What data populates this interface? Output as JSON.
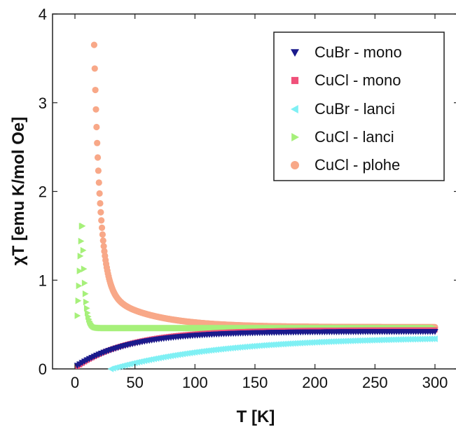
{
  "chart_data": {
    "type": "scatter",
    "xlabel": "T [K]",
    "ylabel": "χT [emu K/mol Oe]",
    "xlim": [
      -30,
      325
    ],
    "ylim": [
      0,
      4
    ],
    "xticks": [
      "0",
      "50",
      "100",
      "150",
      "200",
      "250",
      "300"
    ],
    "yticks": [
      "0",
      "1",
      "2",
      "3",
      "4"
    ],
    "legend_position": "top-right",
    "series": [
      {
        "name": "CuBr - mono",
        "color": "#1a1a8c",
        "marker": "triangle-down"
      },
      {
        "name": "CuCl - mono",
        "color": "#f0507a",
        "marker": "square"
      },
      {
        "name": "CuBr - lanci",
        "color": "#7ff0f4",
        "marker": "triangle-left"
      },
      {
        "name": "CuCl - lanci",
        "color": "#a6f07a",
        "marker": "triangle-right"
      },
      {
        "name": "CuCl - plohe",
        "color": "#f8a888",
        "marker": "circle"
      }
    ]
  }
}
